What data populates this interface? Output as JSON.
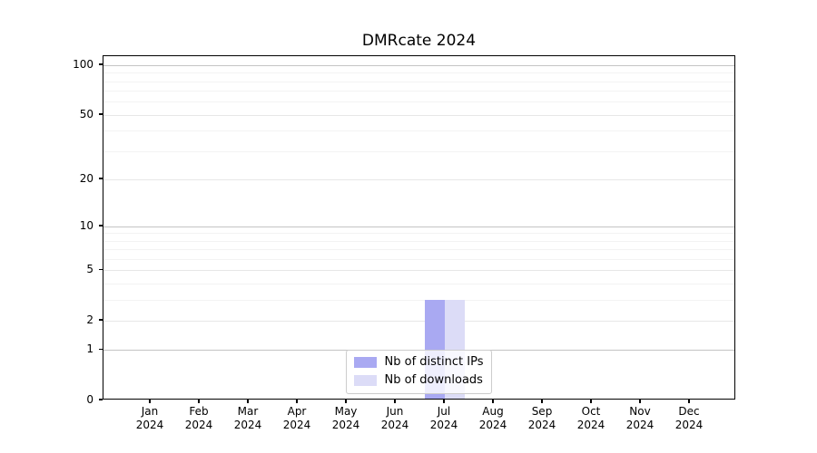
{
  "chart_data": {
    "type": "bar",
    "title": "DMRcate 2024",
    "xlabel": "",
    "ylabel": "",
    "year": "2024",
    "months": [
      "Jan",
      "Feb",
      "Mar",
      "Apr",
      "May",
      "Jun",
      "Jul",
      "Aug",
      "Sep",
      "Oct",
      "Nov",
      "Dec"
    ],
    "categories": [
      "Jan 2024",
      "Feb 2024",
      "Mar 2024",
      "Apr 2024",
      "May 2024",
      "Jun 2024",
      "Jul 2024",
      "Aug 2024",
      "Sep 2024",
      "Oct 2024",
      "Nov 2024",
      "Dec 2024"
    ],
    "series": [
      {
        "name": "Nb of distinct IPs",
        "color": "#a9a9f2",
        "values": [
          0,
          0,
          0,
          0,
          0,
          0,
          3,
          0,
          0,
          0,
          0,
          0
        ]
      },
      {
        "name": "Nb of downloads",
        "color": "#dcdcf7",
        "values": [
          0,
          0,
          0,
          0,
          0,
          0,
          3,
          0,
          0,
          0,
          0,
          0
        ]
      }
    ],
    "y_scale": "log1p",
    "ylim": [
      0,
      113
    ],
    "y_major_ticks": [
      0,
      1,
      2,
      5,
      10,
      20,
      50,
      100
    ],
    "y_minor_gridlines": [
      3,
      4,
      6,
      7,
      8,
      9,
      30,
      40,
      60,
      70,
      80,
      90
    ],
    "grid": true,
    "legend_position": "lower center",
    "colors": {
      "grid_power10": "#c4c4c4",
      "grid_major": "#e7e7e7",
      "grid_minor": "#f3f3f3",
      "axis": "#000000",
      "text": "#000000",
      "background": "#ffffff"
    }
  }
}
